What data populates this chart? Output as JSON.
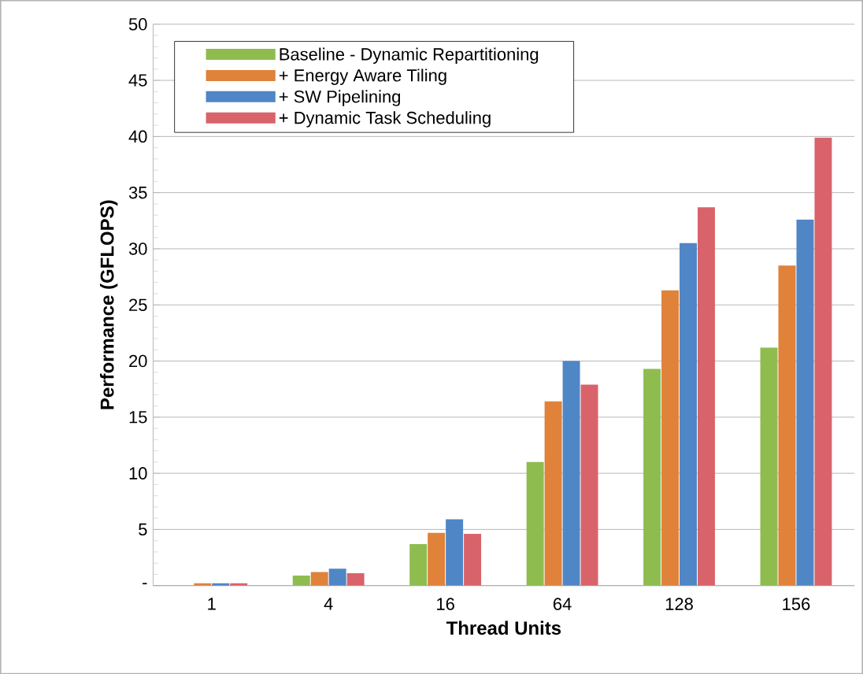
{
  "chart_data": {
    "type": "bar",
    "xlabel": "Thread Units",
    "ylabel": "Performance (GFLOPS)",
    "categories": [
      "1",
      "4",
      "16",
      "64",
      "128",
      "156"
    ],
    "series": [
      {
        "name": "Baseline - Dynamic Repartitioning",
        "color": "#8fbc4f",
        "values": [
          null,
          0.9,
          3.7,
          11.0,
          19.3,
          21.2
        ]
      },
      {
        "name": "+ Energy Aware Tiling",
        "color": "#e0823a",
        "values": [
          0.2,
          1.2,
          4.7,
          16.4,
          26.3,
          28.5
        ]
      },
      {
        "name": "+ SW Pipelining",
        "color": "#4f86c6",
        "values": [
          0.2,
          1.5,
          5.9,
          20.0,
          30.5,
          32.6
        ]
      },
      {
        "name": "+ Dynamic Task Scheduling",
        "color": "#d9636a",
        "values": [
          0.2,
          1.1,
          4.6,
          17.9,
          33.7,
          39.9
        ]
      }
    ],
    "ylim": [
      0,
      50
    ],
    "yticks": [
      {
        "value": 0,
        "label": "-"
      },
      5,
      10,
      15,
      20,
      25,
      30,
      35,
      40,
      45,
      50
    ],
    "grid": "y",
    "legend": "top left"
  }
}
